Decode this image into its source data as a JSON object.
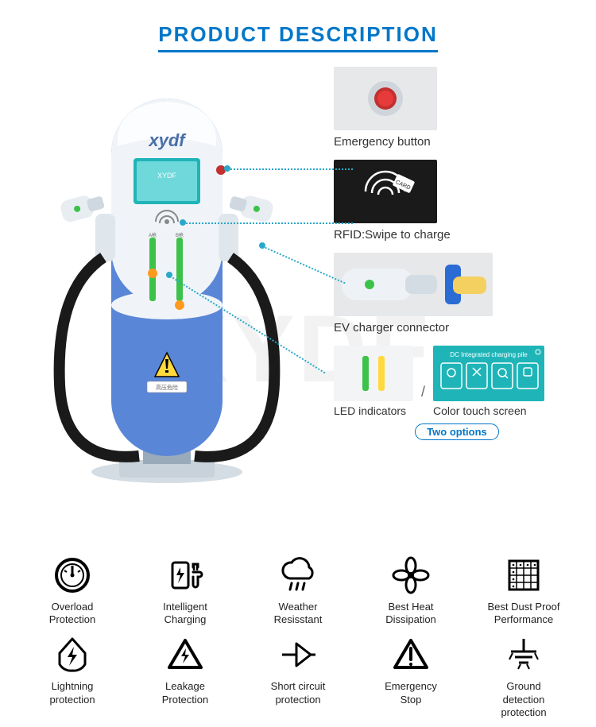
{
  "title": "PRODUCT DESCRIPTION",
  "brand": "xydf",
  "watermark": "XYDF",
  "callouts": {
    "emergency": "Emergency button",
    "rfid": "RFID:Swipe to charge",
    "connector": "EV charger connector",
    "led": "LED indicators",
    "touch": "Color touch screen",
    "sep": "/",
    "two_options": "Two options",
    "touch_title": "DC Integrated charging pile"
  },
  "features": [
    {
      "icon": "overload",
      "label": "Overload\nProtection"
    },
    {
      "icon": "intelligent",
      "label": "Intelligent\nCharging"
    },
    {
      "icon": "weather",
      "label": "Weather\nResisstant"
    },
    {
      "icon": "heat",
      "label": "Best Heat\nDissipation"
    },
    {
      "icon": "dust",
      "label": "Best Dust Proof\nPerformance"
    },
    {
      "icon": "lightning",
      "label": "Lightning\nprotection"
    },
    {
      "icon": "leakage",
      "label": "Leakage\nProtection"
    },
    {
      "icon": "short",
      "label": "Short circuit\nprotection"
    },
    {
      "icon": "estop",
      "label": "Emergency\nStop"
    },
    {
      "icon": "ground",
      "label": "Ground\ndetection\nprotection"
    }
  ],
  "colors": {
    "accent": "#0077c8",
    "product_blue": "#5a86d8",
    "product_white": "#e8eef4",
    "thumb_bg": "#e6e8ea",
    "touch_bg": "#1fb5b8",
    "estop_red": "#c23030"
  }
}
